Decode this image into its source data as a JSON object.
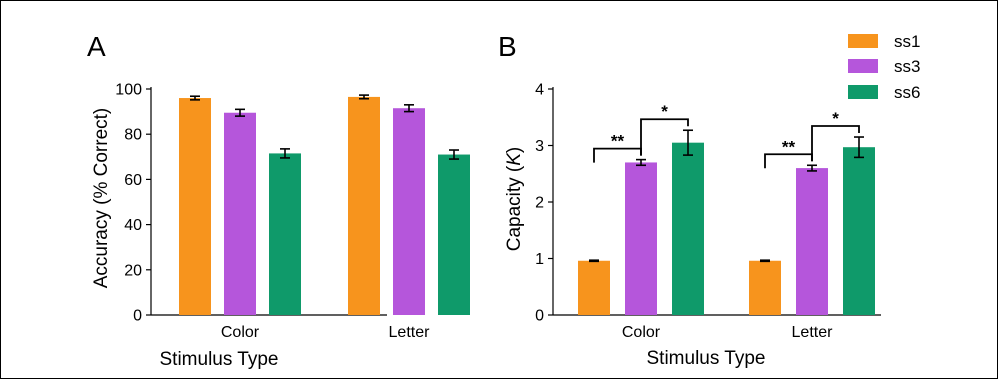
{
  "colors": {
    "ss1": "#F7941D",
    "ss3": "#B556DB",
    "ss6": "#0F9A6A"
  },
  "legend": {
    "items": [
      {
        "key": "ss1",
        "label": "ss1"
      },
      {
        "key": "ss3",
        "label": "ss3"
      },
      {
        "key": "ss6",
        "label": "ss6"
      }
    ]
  },
  "chart_data": [
    {
      "panel": "A",
      "type": "bar",
      "xlabel": "Stimulus Type",
      "ylabel": "Accuracy (% Correct)",
      "ylim": [
        0,
        100
      ],
      "yticks": [
        0,
        20,
        40,
        60,
        80,
        100
      ],
      "categories": [
        "Color",
        "Letter"
      ],
      "series": [
        {
          "name": "ss1",
          "values": [
            96,
            96.5
          ],
          "errors": [
            0.8,
            0.8
          ]
        },
        {
          "name": "ss3",
          "values": [
            89.5,
            91.5
          ],
          "errors": [
            1.5,
            1.5
          ]
        },
        {
          "name": "ss6",
          "values": [
            71.5,
            71
          ],
          "errors": [
            2.0,
            2.0
          ]
        }
      ],
      "annotations": []
    },
    {
      "panel": "B",
      "type": "bar",
      "xlabel": "Stimulus Type",
      "ylabel": "Capacity (K)",
      "ylabel_plain": "Capacity (",
      "ylabel_italic": "K",
      "ylabel_close": ")",
      "ylim": [
        0,
        4
      ],
      "yticks": [
        0,
        1,
        2,
        3,
        4
      ],
      "categories": [
        "Color",
        "Letter"
      ],
      "series": [
        {
          "name": "ss1",
          "values": [
            0.96,
            0.96
          ],
          "errors": [
            0.01,
            0.01
          ]
        },
        {
          "name": "ss3",
          "values": [
            2.7,
            2.6
          ],
          "errors": [
            0.05,
            0.05
          ]
        },
        {
          "name": "ss6",
          "values": [
            3.05,
            2.97
          ],
          "errors": [
            0.22,
            0.18
          ]
        }
      ],
      "annotations": [
        {
          "category": 0,
          "from": "ss1",
          "to": "ss3",
          "label": "**"
        },
        {
          "category": 0,
          "from": "ss3",
          "to": "ss6",
          "label": "*"
        },
        {
          "category": 1,
          "from": "ss1",
          "to": "ss3",
          "label": "**"
        },
        {
          "category": 1,
          "from": "ss3",
          "to": "ss6",
          "label": "*"
        }
      ]
    }
  ]
}
